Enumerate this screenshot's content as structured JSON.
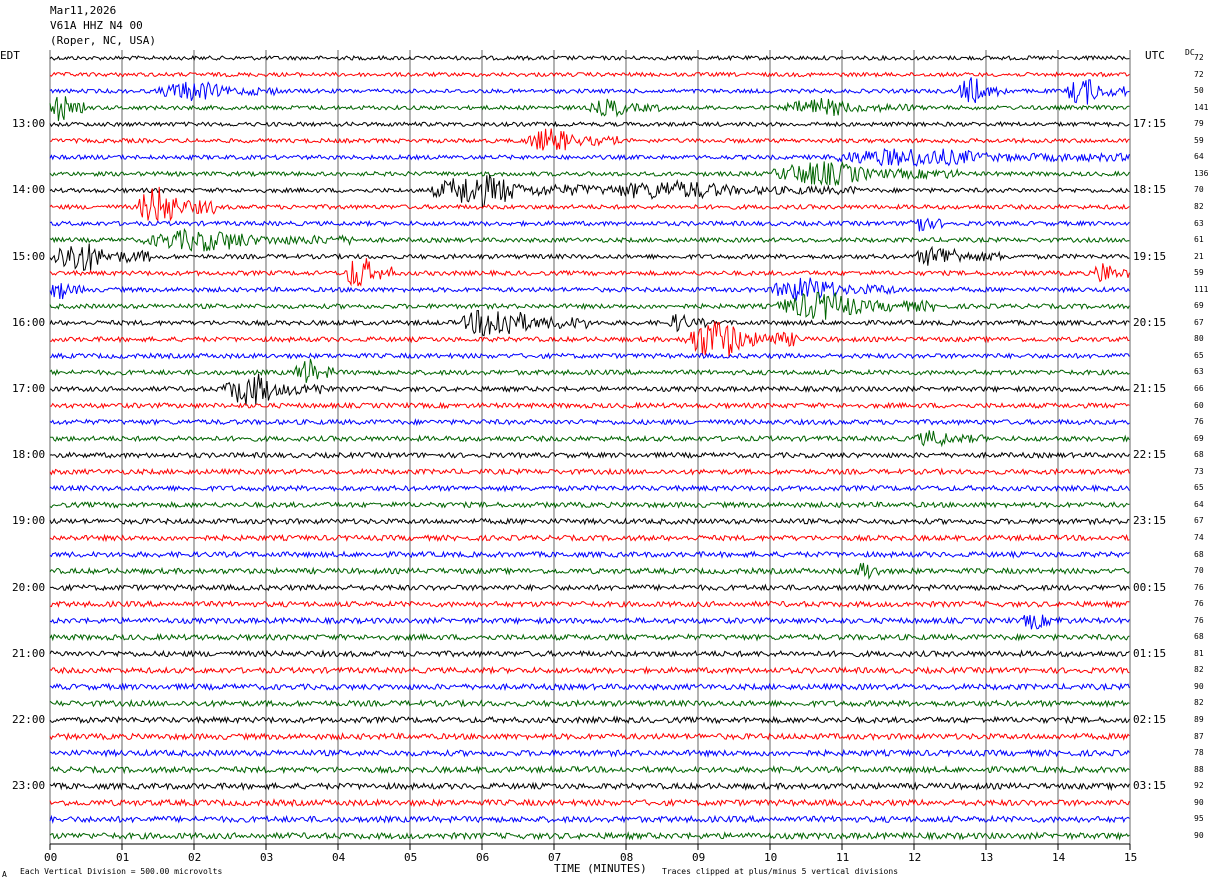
{
  "header": {
    "date": "Mar11,2026",
    "station": "V61A HHZ N4 00",
    "location": "(Roper, NC, USA)"
  },
  "left_tz": "EDT",
  "right_tz": "UTC",
  "dc_label": "DC",
  "footer": {
    "left_mark": "A",
    "division_note": "Each Vertical Division =  500.00 microvolts",
    "clip_note": "Traces clipped at plus/minus 5 vertical divisions"
  },
  "chart_data": {
    "type": "line",
    "title": "V61A HHZ N4 00",
    "xlabel": "TIME (MINUTES)",
    "xlim": [
      0,
      15
    ],
    "x_ticks": [
      "00",
      "01",
      "02",
      "03",
      "04",
      "05",
      "06",
      "07",
      "08",
      "09",
      "10",
      "11",
      "12",
      "13",
      "14",
      "15"
    ],
    "rows_per_hour": 4,
    "row_minutes": 15,
    "trace_colors": [
      "#000000",
      "#ff0000",
      "#0000ff",
      "#006400"
    ],
    "left_hour_labels": [
      {
        "row": 4,
        "label": "13:00"
      },
      {
        "row": 8,
        "label": "14:00"
      },
      {
        "row": 12,
        "label": "15:00"
      },
      {
        "row": 16,
        "label": "16:00"
      },
      {
        "row": 20,
        "label": "17:00"
      },
      {
        "row": 24,
        "label": "18:00"
      },
      {
        "row": 28,
        "label": "19:00"
      },
      {
        "row": 32,
        "label": "20:00"
      },
      {
        "row": 36,
        "label": "21:00"
      },
      {
        "row": 40,
        "label": "22:00"
      },
      {
        "row": 44,
        "label": "23:00"
      }
    ],
    "right_hour_labels": [
      {
        "row": 4,
        "label": "17:15"
      },
      {
        "row": 8,
        "label": "18:15"
      },
      {
        "row": 12,
        "label": "19:15"
      },
      {
        "row": 16,
        "label": "20:15"
      },
      {
        "row": 20,
        "label": "21:15"
      },
      {
        "row": 24,
        "label": "22:15"
      },
      {
        "row": 28,
        "label": "23:15"
      },
      {
        "row": 32,
        "label": "00:15"
      },
      {
        "row": 36,
        "label": "01:15"
      },
      {
        "row": 40,
        "label": "02:15"
      },
      {
        "row": 44,
        "label": "03:15"
      }
    ],
    "dc_offsets": [
      72,
      72,
      50,
      141,
      79,
      59,
      64,
      136,
      70,
      82,
      63,
      61,
      21,
      59,
      111,
      69,
      67,
      80,
      65,
      63,
      66,
      60,
      76,
      69,
      68,
      73,
      65,
      64,
      67,
      74,
      68,
      70,
      76,
      76,
      76,
      68,
      81,
      82,
      90,
      82,
      89,
      87,
      78,
      88,
      92,
      90,
      95,
      90
    ],
    "events": [
      {
        "row": 2,
        "start": 1.5,
        "end": 3.2,
        "amp": 2.0
      },
      {
        "row": 2,
        "start": 12.6,
        "end": 13.3,
        "amp": 3.0
      },
      {
        "row": 2,
        "start": 14.1,
        "end": 15.0,
        "amp": 3.0
      },
      {
        "row": 3,
        "start": 0.0,
        "end": 0.5,
        "amp": 3.0
      },
      {
        "row": 3,
        "start": 7.5,
        "end": 8.5,
        "amp": 1.8
      },
      {
        "row": 3,
        "start": 10.2,
        "end": 12.0,
        "amp": 1.8
      },
      {
        "row": 5,
        "start": 6.6,
        "end": 7.9,
        "amp": 2.5
      },
      {
        "row": 6,
        "start": 10.8,
        "end": 15.0,
        "amp": 1.8
      },
      {
        "row": 7,
        "start": 10.0,
        "end": 12.6,
        "amp": 2.5
      },
      {
        "row": 8,
        "start": 5.3,
        "end": 7.6,
        "amp": 3.5
      },
      {
        "row": 8,
        "start": 7.6,
        "end": 11.2,
        "amp": 1.8
      },
      {
        "row": 9,
        "start": 1.2,
        "end": 2.3,
        "amp": 4.5
      },
      {
        "row": 10,
        "start": 11.9,
        "end": 12.4,
        "amp": 2.5
      },
      {
        "row": 11,
        "start": 1.3,
        "end": 4.2,
        "amp": 2.2
      },
      {
        "row": 12,
        "start": 0.0,
        "end": 1.4,
        "amp": 3.5
      },
      {
        "row": 12,
        "start": 12.0,
        "end": 13.3,
        "amp": 2.2
      },
      {
        "row": 13,
        "start": 4.1,
        "end": 4.8,
        "amp": 4.0
      },
      {
        "row": 13,
        "start": 14.5,
        "end": 15.0,
        "amp": 2.5
      },
      {
        "row": 14,
        "start": 0.0,
        "end": 0.5,
        "amp": 2.0
      },
      {
        "row": 14,
        "start": 10.0,
        "end": 11.8,
        "amp": 2.5
      },
      {
        "row": 15,
        "start": 10.1,
        "end": 12.3,
        "amp": 3.0
      },
      {
        "row": 16,
        "start": 5.7,
        "end": 7.5,
        "amp": 3.5
      },
      {
        "row": 16,
        "start": 8.6,
        "end": 9.1,
        "amp": 2.0
      },
      {
        "row": 17,
        "start": 8.8,
        "end": 10.4,
        "amp": 4.5
      },
      {
        "row": 19,
        "start": 3.4,
        "end": 4.0,
        "amp": 3.0
      },
      {
        "row": 20,
        "start": 2.4,
        "end": 3.8,
        "amp": 3.5
      },
      {
        "row": 23,
        "start": 12.0,
        "end": 13.0,
        "amp": 1.5
      },
      {
        "row": 31,
        "start": 11.2,
        "end": 11.6,
        "amp": 2.2
      },
      {
        "row": 34,
        "start": 13.5,
        "end": 14.1,
        "amp": 1.6
      }
    ]
  }
}
